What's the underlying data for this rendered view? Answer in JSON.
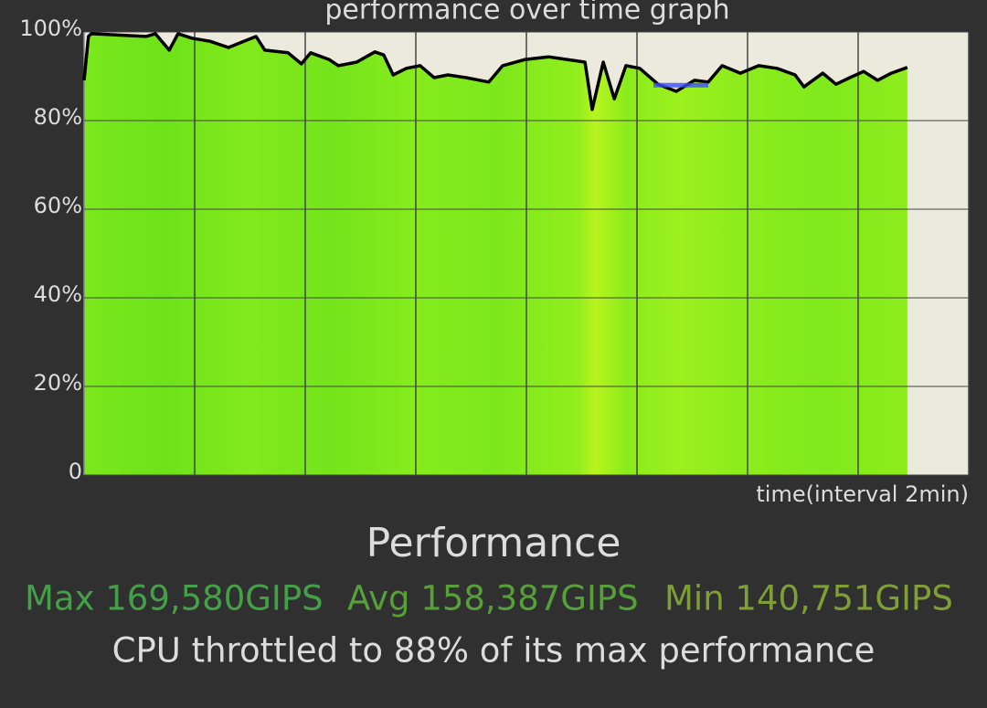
{
  "chart_data": {
    "type": "area",
    "title": "performance over time graph",
    "x_label": "time(interval 2min)",
    "xlim": [
      0,
      16
    ],
    "xticks": [
      0,
      2,
      4,
      6,
      8,
      10,
      12,
      14,
      16
    ],
    "ylim": [
      0,
      100
    ],
    "yticks": [
      {
        "value": 0,
        "label": "0"
      },
      {
        "value": 20,
        "label": "20%"
      },
      {
        "value": 40,
        "label": "40%"
      },
      {
        "value": 60,
        "label": "60%"
      },
      {
        "value": 80,
        "label": "80%"
      },
      {
        "value": 100,
        "label": "100%"
      }
    ],
    "grid": true,
    "color": "#000000",
    "x": [
      0,
      0.08,
      0.13,
      1.12,
      1.29,
      1.54,
      1.7,
      1.95,
      2.28,
      2.61,
      3.11,
      3.27,
      3.69,
      3.93,
      4.1,
      4.43,
      4.6,
      4.93,
      5.26,
      5.42,
      5.59,
      5.83,
      6.08,
      6.33,
      6.58,
      6.91,
      7.32,
      7.57,
      7.98,
      8.4,
      8.73,
      9.06,
      9.19,
      9.39,
      9.59,
      9.8,
      10.05,
      10.38,
      10.71,
      11.04,
      11.29,
      11.54,
      11.87,
      12.2,
      12.53,
      12.86,
      13.02,
      13.36,
      13.6,
      13.85,
      14.1,
      14.35,
      14.6,
      14.89
    ],
    "values": [
      89.1,
      99.0,
      99.6,
      99.0,
      99.6,
      95.9,
      99.6,
      98.6,
      97.9,
      96.5,
      99.0,
      95.9,
      95.3,
      92.8,
      95.3,
      93.8,
      92.4,
      93.2,
      95.5,
      94.8,
      90.3,
      91.8,
      92.4,
      89.7,
      90.3,
      89.7,
      88.7,
      92.4,
      93.8,
      94.4,
      93.8,
      93.2,
      82.5,
      93.2,
      84.9,
      92.4,
      91.8,
      88.2,
      86.6,
      89.1,
      88.7,
      92.4,
      90.7,
      92.4,
      91.8,
      90.3,
      87.6,
      90.7,
      88.2,
      89.7,
      91.1,
      89.1,
      90.7,
      92.0
    ],
    "throttle_level": 88,
    "throttle_color": "#3a4cff"
  },
  "summary": {
    "heading": "Performance",
    "stats": [
      "Max 169,580GIPS",
      "Avg 158,387GIPS",
      "Min 140,751GIPS"
    ],
    "conclusion": "CPU throttled to 88% of its max performance"
  }
}
